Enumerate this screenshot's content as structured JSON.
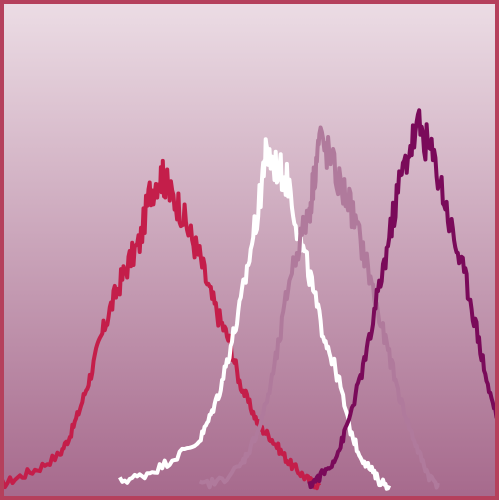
{
  "chart_data": {
    "type": "line",
    "title": "",
    "xlabel": "",
    "ylabel": "",
    "xlim": [
      0,
      100
    ],
    "ylim": [
      0,
      100
    ],
    "grid": false,
    "legend": "none",
    "background": {
      "top": "#ecdde5",
      "bottom": "#a6698c"
    },
    "frame_color": "#b5405c",
    "series": [
      {
        "color": "#c41e4a",
        "x": [
          0,
          4,
          8,
          12,
          14,
          16,
          18,
          20,
          22,
          24,
          26,
          28,
          30,
          32,
          33,
          34,
          36,
          38,
          40,
          42,
          44,
          46,
          48,
          50,
          52,
          54,
          56,
          58,
          60,
          62,
          64
        ],
        "y": [
          1,
          3,
          5,
          8,
          12,
          18,
          25,
          33,
          40,
          46,
          51,
          55,
          66,
          70,
          69,
          66,
          63,
          57,
          52,
          44,
          38,
          33,
          24,
          19,
          14,
          12,
          9,
          6,
          4,
          2,
          1
        ]
      },
      {
        "color": "#ffffff",
        "x": [
          24,
          28,
          32,
          36,
          40,
          42,
          44,
          46,
          48,
          50,
          52,
          53,
          54,
          56,
          58,
          60,
          62,
          64,
          66,
          68,
          70,
          72,
          74,
          76,
          78
        ],
        "y": [
          2,
          3,
          5,
          8,
          11,
          16,
          22,
          31,
          40,
          52,
          64,
          74,
          74,
          71,
          68,
          56,
          48,
          38,
          31,
          24,
          14,
          8,
          5,
          2,
          1
        ]
      },
      {
        "color": "#b07a9c",
        "x": [
          40,
          44,
          48,
          50,
          52,
          54,
          56,
          58,
          60,
          62,
          63,
          64,
          66,
          68,
          70,
          72,
          74,
          76,
          78,
          80,
          82,
          84,
          86,
          88
        ],
        "y": [
          1,
          2,
          5,
          9,
          14,
          22,
          33,
          47,
          55,
          62,
          70,
          78,
          74,
          68,
          64,
          56,
          48,
          38,
          30,
          21,
          14,
          8,
          3,
          1
        ]
      },
      {
        "color": "#7a0a5a",
        "x": [
          62,
          64,
          66,
          68,
          70,
          72,
          74,
          76,
          78,
          80,
          82,
          84,
          86,
          88,
          90,
          92,
          94,
          96,
          98,
          100
        ],
        "y": [
          1,
          3,
          5,
          9,
          16,
          24,
          33,
          45,
          56,
          68,
          76,
          81,
          76,
          70,
          60,
          52,
          44,
          33,
          22,
          15
        ]
      }
    ]
  }
}
